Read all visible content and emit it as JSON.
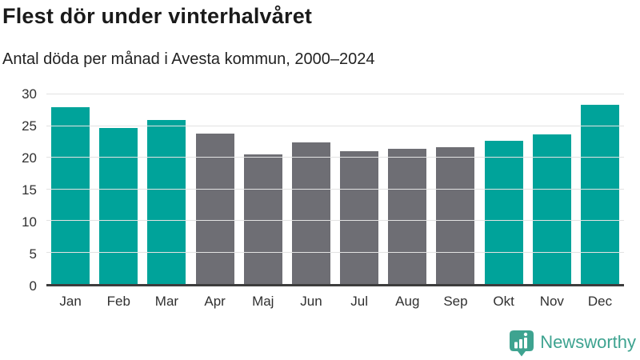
{
  "header": {
    "title": "Flest dör under vinterhalvåret",
    "subtitle": "Antal döda per månad i Avesta kommun, 2000–2024"
  },
  "chart_data": {
    "type": "bar",
    "title": "Flest dör under vinterhalvåret",
    "subtitle": "Antal döda per månad i Avesta kommun, 2000–2024",
    "categories": [
      "Jan",
      "Feb",
      "Mar",
      "Apr",
      "Maj",
      "Jun",
      "Jul",
      "Aug",
      "Sep",
      "Okt",
      "Nov",
      "Dec"
    ],
    "values": [
      28.0,
      24.7,
      26.0,
      23.8,
      20.5,
      22.4,
      21.0,
      21.4,
      21.7,
      22.7,
      23.7,
      28.3
    ],
    "bar_color_keys": [
      "highlight",
      "highlight",
      "highlight",
      "default",
      "default",
      "default",
      "default",
      "default",
      "default",
      "highlight",
      "highlight",
      "highlight"
    ],
    "colors": {
      "highlight": "#00a39a",
      "default": "#6e6e74"
    },
    "xlabel": "",
    "ylabel": "",
    "ylim": [
      0,
      30
    ],
    "yticks": [
      0,
      5,
      10,
      15,
      20,
      25,
      30
    ],
    "grid": true,
    "legend": false,
    "baseline_color": "#3d3d3d",
    "gridline_color": "#e3e3e3"
  },
  "footer": {
    "brand": "Newsworthy",
    "brand_color": "#3ea390",
    "logo_icon": "bar-chart-speech-bubble-icon"
  }
}
